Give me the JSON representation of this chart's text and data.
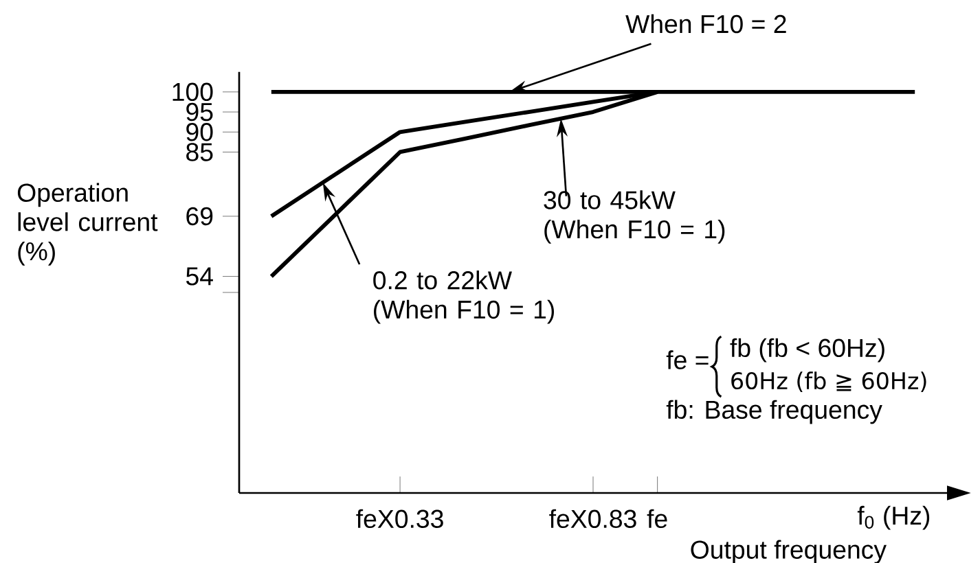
{
  "chart_data": {
    "type": "line",
    "xlabel": "Output frequency",
    "ylabel": "Operation level current (%)",
    "categories": [
      null,
      null,
      "feX0.33",
      null,
      null,
      "feX0.83",
      "fe",
      null,
      null,
      null,
      null
    ],
    "ylim": [
      0,
      105
    ],
    "yticks": [
      {
        "value": 50,
        "label": null
      },
      54,
      69,
      85,
      90,
      95,
      100
    ],
    "series": [
      {
        "name": "When F10 = 2",
        "color": "#000000",
        "values": [
          100,
          100,
          100,
          100,
          100,
          100,
          100,
          100,
          100,
          100,
          100
        ]
      },
      {
        "name": "0.2 to 22kW (When F10 = 1)",
        "color": "#000000",
        "values": [
          69,
          79.5,
          90,
          92.5,
          95,
          97.5,
          100,
          null,
          null,
          null,
          null
        ]
      },
      {
        "name": "30 to 45kW (When F10 = 1)",
        "color": "#000000",
        "values": [
          54,
          69.5,
          85,
          88.3,
          91.7,
          95,
          100,
          null,
          null,
          null,
          null
        ]
      }
    ],
    "annotations": [
      "fe =",
      "fb (fb < 60Hz)",
      "60Hz (fb ≧ 60Hz)",
      "fb:  Base frequency",
      "f$_{0}$ (Hz)"
    ],
    "legend": false,
    "grid": false,
    "marker": "none",
    "line_style": "solid"
  }
}
